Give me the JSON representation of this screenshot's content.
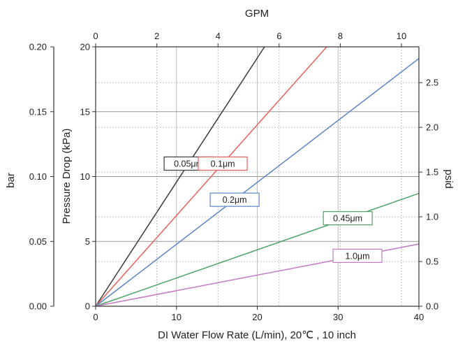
{
  "chart_data": {
    "type": "line",
    "top_axis": {
      "label": "GPM",
      "range": [
        0,
        10.57
      ],
      "ticks": [
        "0",
        "2",
        "4",
        "6",
        "8",
        "10"
      ]
    },
    "bottom_axis": {
      "label": "DI Water Flow Rate (L/min), 20℃ , 10 inch",
      "range": [
        0,
        40
      ],
      "ticks": [
        "0",
        "10",
        "20",
        "30",
        "40"
      ]
    },
    "left_inner_axis": {
      "label": "Pressure Drop (kPa)",
      "range": [
        0,
        20
      ],
      "ticks": [
        "0",
        "5",
        "10",
        "15",
        "20"
      ]
    },
    "left_outer_axis": {
      "label": "bar",
      "range": [
        0,
        0.2
      ],
      "ticks": [
        "0.00",
        "0.05",
        "0.10",
        "0.15",
        "0.20"
      ]
    },
    "right_axis": {
      "label": "psid",
      "range": [
        0,
        2.9
      ],
      "ticks": [
        "0.0",
        "0.5",
        "1.0",
        "1.5",
        "2.0",
        "2.5"
      ]
    },
    "grid": true,
    "series": [
      {
        "name": "0.05μm",
        "color": "#3a3a3a",
        "x": [
          0,
          20.9
        ],
        "y": [
          0,
          20
        ]
      },
      {
        "name": "0.1μm",
        "color": "#e8605a",
        "x": [
          0,
          28.6
        ],
        "y": [
          0,
          20
        ]
      },
      {
        "name": "0.2μm",
        "color": "#5b83c8",
        "x": [
          0,
          40
        ],
        "y": [
          0,
          19.1
        ]
      },
      {
        "name": "0.45μm",
        "color": "#4ea36b",
        "x": [
          0,
          40
        ],
        "y": [
          0,
          8.7
        ]
      },
      {
        "name": "1.0μm",
        "color": "#c47ac4",
        "x": [
          0,
          40
        ],
        "y": [
          0,
          4.8
        ]
      }
    ]
  }
}
